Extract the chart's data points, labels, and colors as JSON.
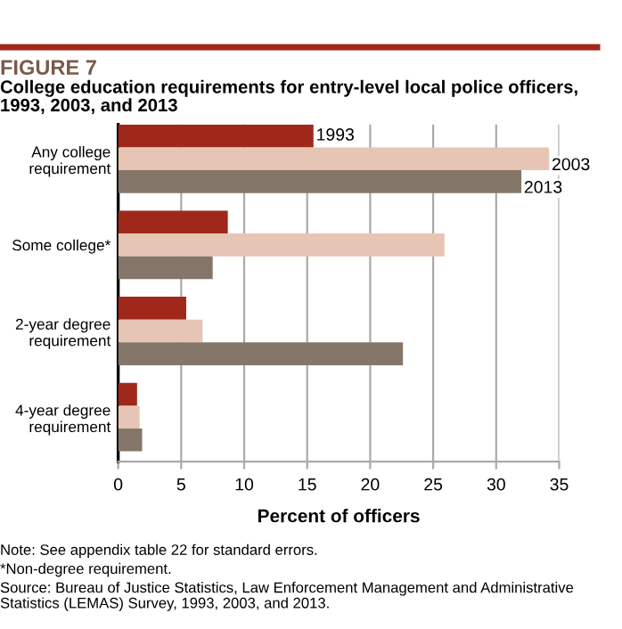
{
  "chart_data": {
    "type": "bar",
    "orientation": "horizontal",
    "title": "FIGURE 7",
    "subtitle": "College education requirements for entry-level local police officers, 1993, 2003, and 2013",
    "xlabel": "Percent of officers",
    "categories": [
      "Any college\nrequirement",
      "Some college*",
      "2-year degree\nrequirement",
      "4-year degree\nrequirement"
    ],
    "series": [
      {
        "name": "1993",
        "color": "#a0281a",
        "values": [
          15.5,
          8.7,
          5.4,
          1.5
        ]
      },
      {
        "name": "2003",
        "color": "#e6c5b5",
        "values": [
          34.2,
          25.9,
          6.7,
          1.7
        ]
      },
      {
        "name": "2013",
        "color": "#85766a",
        "values": [
          32.0,
          7.5,
          22.6,
          1.9
        ]
      }
    ],
    "xlim": [
      0,
      35
    ],
    "xticks": [
      0,
      5,
      10,
      15,
      20,
      25,
      30,
      35
    ],
    "grid": "x",
    "legend": false,
    "annotations": [
      "Note: See appendix table 22 for standard errors.",
      "*Non-degree requirement.",
      "Source: Bureau of Justice Statistics, Law Enforcement Management and Administrative Statistics (LEMAS) Survey, 1993, 2003, and 2013."
    ]
  }
}
